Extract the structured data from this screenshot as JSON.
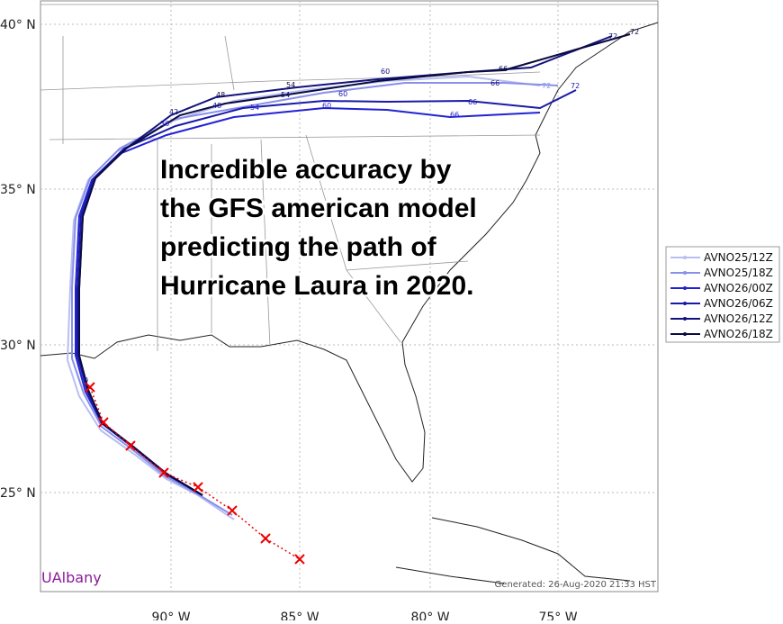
{
  "map": {
    "lat_labels": [
      "40° N",
      "35° N",
      "30° N",
      "25° N"
    ],
    "lon_labels": [
      "90° W",
      "85° W",
      "80° W",
      "75° W"
    ]
  },
  "legend": [
    {
      "name": "AVNO25/12Z",
      "color": "#b8bef2"
    },
    {
      "name": "AVNO25/18Z",
      "color": "#8890e8"
    },
    {
      "name": "AVNO26/00Z",
      "color": "#2222d4"
    },
    {
      "name": "AVNO26/06Z",
      "color": "#1a1aa8"
    },
    {
      "name": "AVNO26/12Z",
      "color": "#12127c"
    },
    {
      "name": "AVNO26/18Z",
      "color": "#0b0b40"
    }
  ],
  "annotation": [
    "Incredible accuracy by",
    "the GFS american model",
    "predicting the path of",
    "Hurricane Laura in 2020."
  ],
  "track_labels": [
    "72",
    "72",
    "72",
    "72",
    "66",
    "66",
    "66",
    "66",
    "60",
    "60",
    "60",
    "54",
    "54",
    "54",
    "48",
    "48",
    "42",
    "36",
    "0"
  ],
  "branding": "UAlbany",
  "generated": "Generated: 26-Aug-2020 21:33 HST"
}
